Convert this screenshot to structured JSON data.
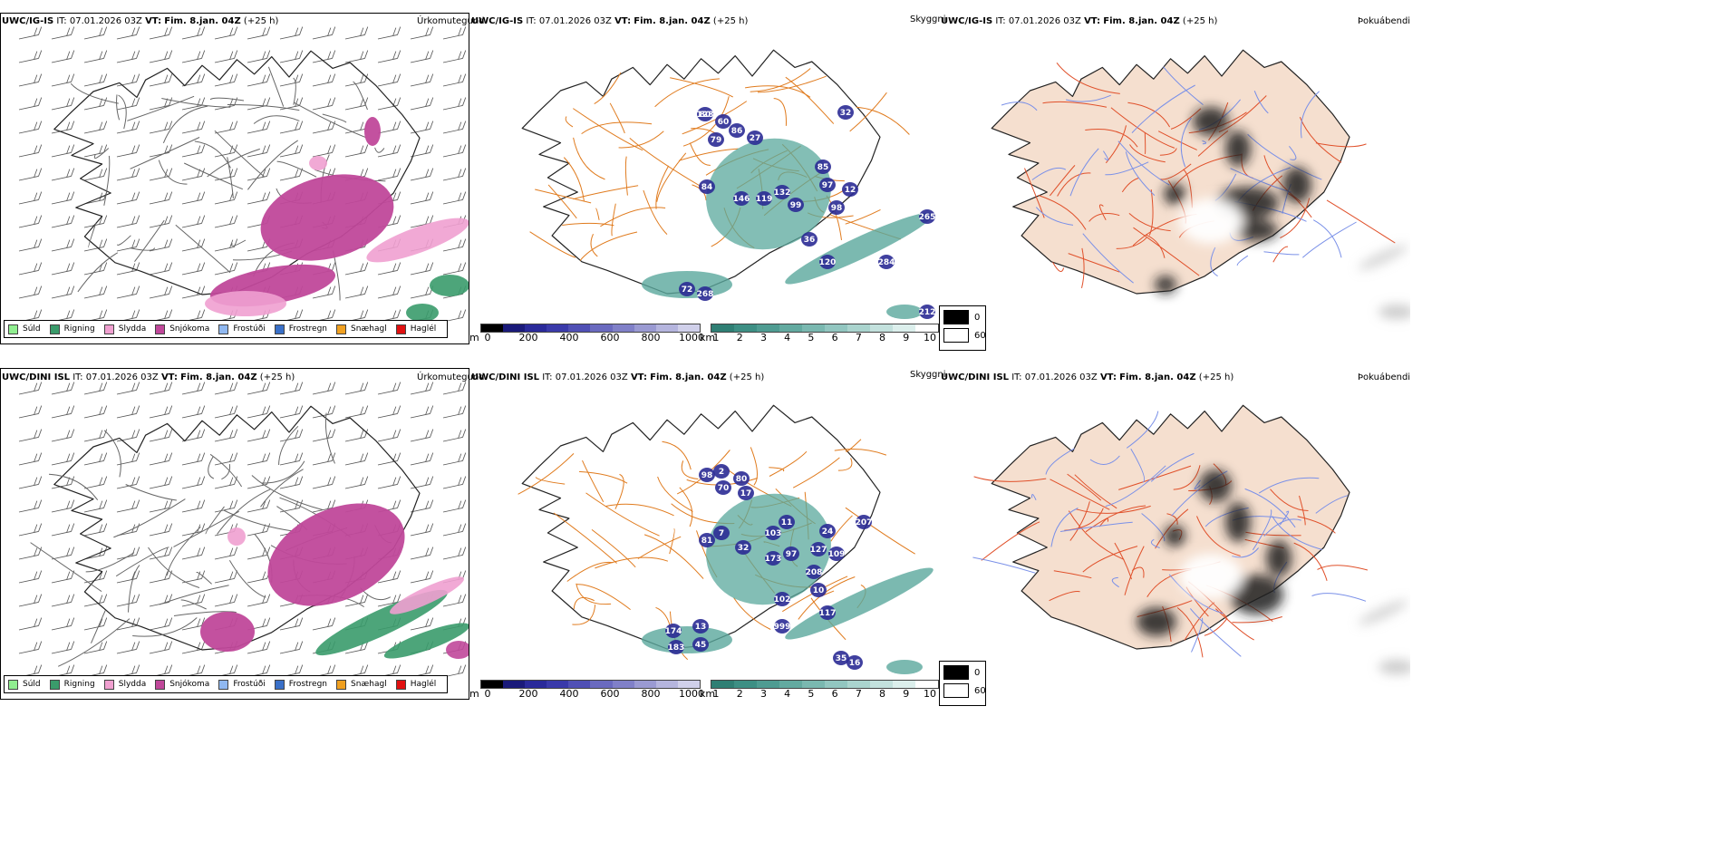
{
  "rows": [
    {
      "model": "UWC/IG-IS",
      "it_label": "IT:",
      "it_value": "07.01.2026 03Z",
      "vt_label": "VT:",
      "vt_value": "Fim. 8.jan. 04Z",
      "lead": "(+25 h)",
      "labels": [
        "80",
        "60",
        "79",
        "86",
        "27",
        "84",
        "146",
        "119",
        "132",
        "99",
        "97",
        "98",
        "12",
        "85",
        "32",
        "36",
        "120",
        "284",
        "265",
        "212",
        "72",
        "268",
        "128"
      ]
    },
    {
      "model": "UWC/DINI ISL",
      "it_label": "IT:",
      "it_value": "07.01.2026 03Z",
      "vt_label": "VT:",
      "vt_value": "Fim. 8.jan. 04Z",
      "lead": "(+25 h)",
      "labels": [
        "98",
        "2",
        "80",
        "70",
        "17",
        "81",
        "7",
        "32",
        "103",
        "11",
        "173",
        "97",
        "127",
        "109",
        "24",
        "207",
        "208",
        "10",
        "102",
        "117",
        "999",
        "13",
        "174",
        "183",
        "45",
        "35",
        "16"
      ]
    }
  ],
  "panel_titles": {
    "ptype": "Úrkomutegund",
    "cloud": "Skyggni",
    "fog": "Þokuábendi"
  },
  "ptype_legend": [
    {
      "label": "Súld",
      "color": "#90ee90"
    },
    {
      "label": "Rigning",
      "color": "#3a9b6b"
    },
    {
      "label": "Slydda",
      "color": "#f0a0d0"
    },
    {
      "label": "Snjókoma",
      "color": "#c0489a"
    },
    {
      "label": "Frostúði",
      "color": "#90b8f0"
    },
    {
      "label": "Frostregn",
      "color": "#3a70c8"
    },
    {
      "label": "Snæhagl",
      "color": "#f0a020"
    },
    {
      "label": "Haglél",
      "color": "#e01010"
    }
  ],
  "cbar_m": {
    "unit": "m",
    "ticks": [
      "0",
      "200",
      "400",
      "600",
      "800",
      "1000"
    ],
    "colors": [
      "#000000",
      "#1a1a7a",
      "#2a2a9a",
      "#3a3aaa",
      "#5050b5",
      "#6a6abf",
      "#8080c8",
      "#9a9ad2",
      "#b5b5de",
      "#d0d0ea"
    ]
  },
  "cbar_km": {
    "unit": "km",
    "ticks": [
      "1",
      "2",
      "3",
      "4",
      "5",
      "6",
      "7",
      "8",
      "9",
      "10"
    ],
    "colors": [
      "#2f7f74",
      "#3d8f84",
      "#4f9c92",
      "#63aaa0",
      "#7ab8b0",
      "#92c6c0",
      "#aad4ce",
      "#c3e1dd",
      "#dcefec",
      "#ffffff"
    ]
  },
  "fog_legend": {
    "high": "0",
    "low": "60"
  },
  "colors": {
    "snow": "#c0489a",
    "sleet": "#f0a0d0",
    "rain": "#3a9b6b",
    "drizzle": "#90ee90",
    "ice": "#f0a020",
    "cloud_low": "#2b2b95",
    "vis_low": "#5aa89c",
    "road": "#e07b1e",
    "land_fog": "#f5dfcf",
    "road_red": "#e0502a",
    "river": "#7a90e8"
  }
}
